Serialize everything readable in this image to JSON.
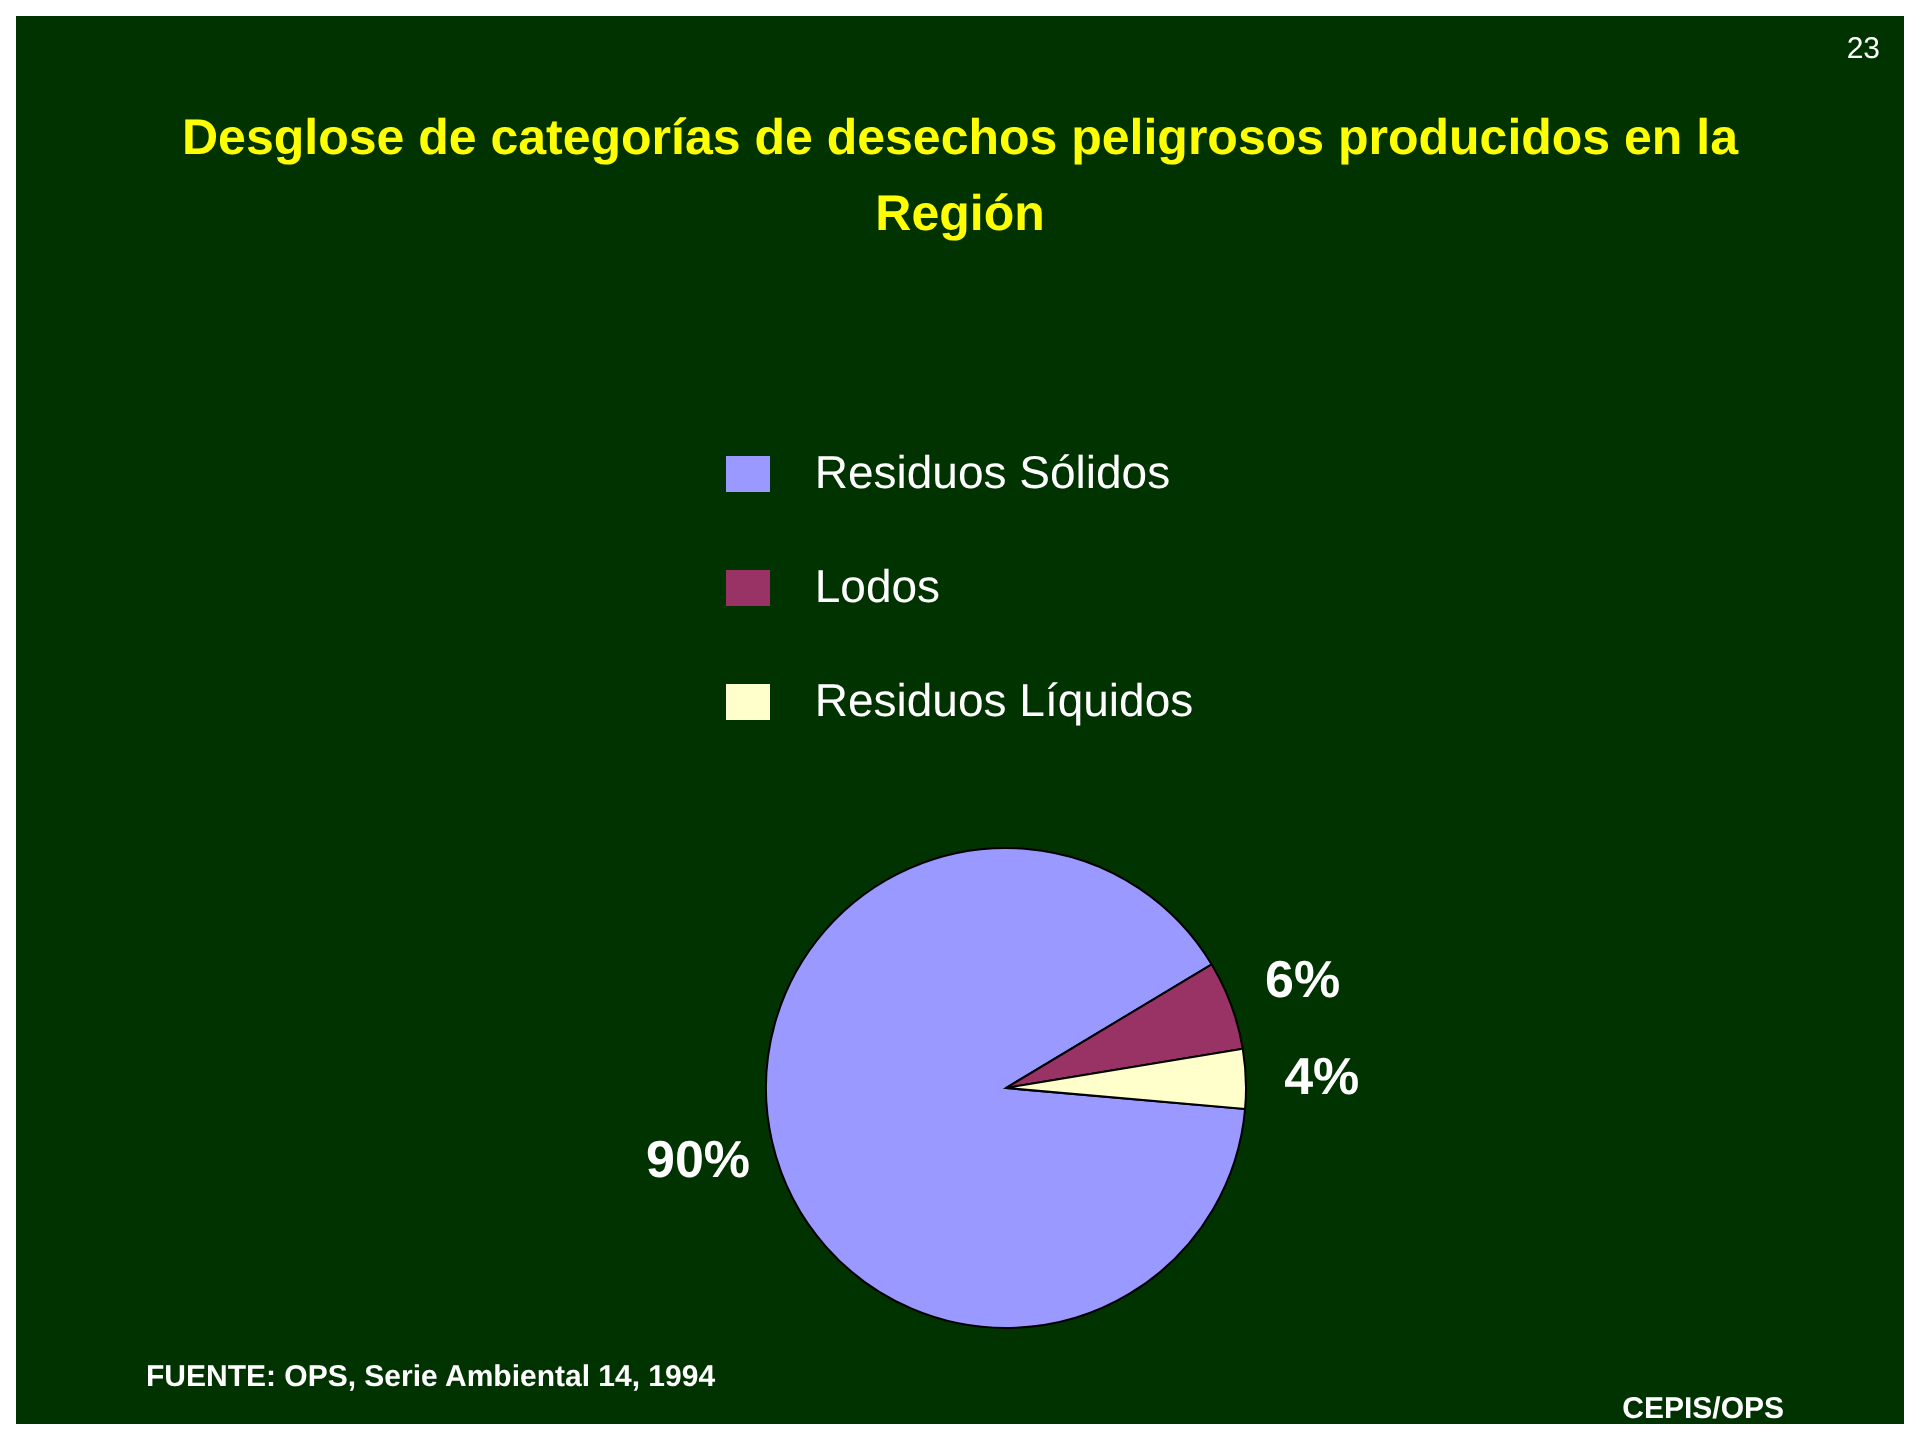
{
  "chart_data": {
    "type": "pie",
    "title": "Desglose de categorías de desechos peligrosos producidos en la Región",
    "categories": [
      "Residuos Sólidos",
      "Lodos",
      "Residuos Líquidos"
    ],
    "values": [
      90,
      6,
      4
    ],
    "colors": [
      "#9999ff",
      "#993366",
      "#ffffcc"
    ],
    "value_labels": [
      "90%",
      "6%",
      "4%"
    ],
    "legend": "top",
    "annotations": [
      "FUENTE: OPS, Serie Ambiental 14, 1994",
      "CEPIS/OPS",
      "23"
    ]
  }
}
